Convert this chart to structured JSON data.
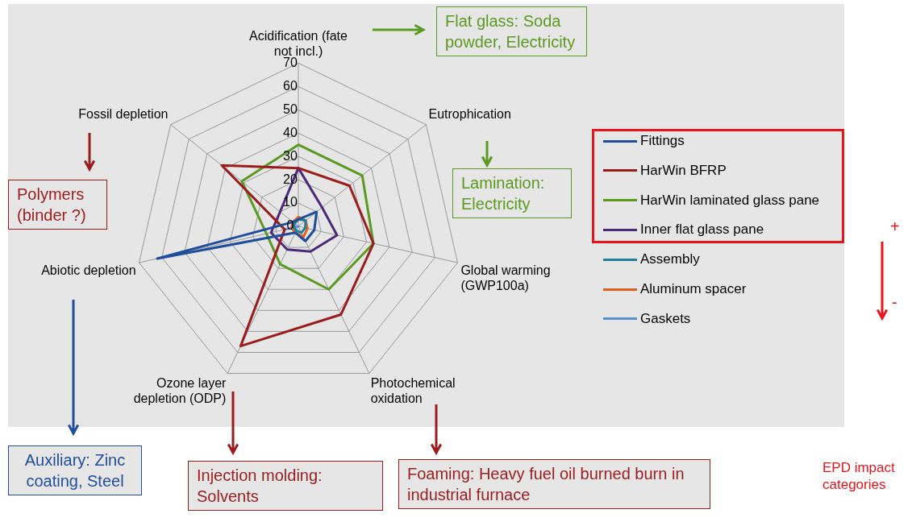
{
  "chart_data": {
    "type": "radar",
    "categories": [
      "Acidification (fate not incl.)",
      "Eutrophication",
      "Global warming (GWP100a)",
      "Photochemical oxidation",
      "Ozone layer depletion (ODP)",
      "Abiotic depletion",
      "Fossil depletion"
    ],
    "series": [
      {
        "name": "Fittings",
        "color": "#1f4e9c",
        "values": [
          3,
          10,
          7,
          7,
          3,
          62,
          3
        ]
      },
      {
        "name": "HarWin BFRP",
        "color": "#9b1c1c",
        "values": [
          25,
          28,
          33,
          42,
          57,
          6,
          42
        ]
      },
      {
        "name": "HarWin laminated glass pane",
        "color": "#5b9a1f",
        "values": [
          35,
          35,
          33,
          30,
          18,
          14,
          31
        ]
      },
      {
        "name": "Inner flat glass pane",
        "color": "#4b2a7c",
        "values": [
          25,
          13,
          17,
          12,
          11,
          12,
          10
        ]
      },
      {
        "name": "Assembly",
        "color": "#1f7f9c",
        "values": [
          3,
          4,
          3,
          3,
          2,
          2,
          2
        ]
      },
      {
        "name": "Aluminum spacer",
        "color": "#e0601a",
        "values": [
          4,
          4,
          4,
          5,
          3,
          3,
          3
        ]
      },
      {
        "name": "Gaskets",
        "color": "#5a8fd0",
        "values": [
          0,
          0,
          0,
          0,
          0,
          6,
          0
        ]
      }
    ],
    "ylim": [
      0,
      70
    ],
    "yticks": [
      0,
      10,
      20,
      30,
      40,
      50,
      60,
      70
    ],
    "grid": true,
    "legend": "right",
    "marker": "none",
    "annotations": [
      "Flat glass: Soda powder, Electricity",
      "Lamination: Electricity",
      "Polymers (binder ?)",
      "Auxiliary: Zinc coating, Steel",
      "Injection molding: Solvents",
      "Foaming: Heavy  fuel oil burned burn in industrial furnace",
      "+",
      "-",
      "EPD impact categories"
    ]
  }
}
